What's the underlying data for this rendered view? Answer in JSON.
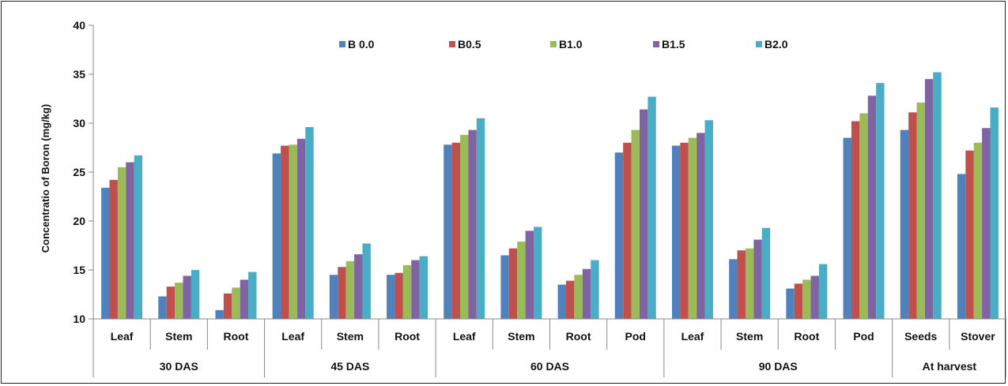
{
  "chart_data": {
    "type": "bar",
    "ylabel": "Concentratio of Boron (mg/kg)",
    "ylim": [
      10,
      40
    ],
    "yticks": [
      10,
      15,
      20,
      25,
      30,
      35,
      40
    ],
    "grid": false,
    "legend_position": "top-center",
    "categories": [
      "Leaf",
      "Stem",
      "Root",
      "Leaf",
      "Stem",
      "Root",
      "Leaf",
      "Stem",
      "Root",
      "Pod",
      "Leaf",
      "Stem",
      "Root",
      "Pod",
      "Seeds",
      "Stover"
    ],
    "groups": [
      {
        "label": "30 DAS",
        "count": 3
      },
      {
        "label": "45 DAS",
        "count": 3
      },
      {
        "label": "60 DAS",
        "count": 4
      },
      {
        "label": "90 DAS",
        "count": 4
      },
      {
        "label": "At harvest",
        "count": 2
      }
    ],
    "series": [
      {
        "name": "B 0.0",
        "color": "#4F81BD",
        "values": [
          23.4,
          12.3,
          10.9,
          26.9,
          14.5,
          14.5,
          27.8,
          16.5,
          13.5,
          27.0,
          27.7,
          16.1,
          13.1,
          28.5,
          29.3,
          24.8
        ]
      },
      {
        "name": "B0.5",
        "color": "#C0504D",
        "values": [
          24.2,
          13.3,
          12.6,
          27.7,
          15.3,
          14.7,
          28.0,
          17.2,
          13.9,
          28.0,
          28.0,
          17.0,
          13.6,
          30.2,
          31.1,
          27.2
        ]
      },
      {
        "name": "B1.0",
        "color": "#9BBB59",
        "values": [
          25.5,
          13.7,
          13.2,
          27.8,
          15.9,
          15.5,
          28.8,
          17.9,
          14.5,
          29.3,
          28.5,
          17.2,
          14.0,
          31.0,
          32.1,
          28.0
        ]
      },
      {
        "name": "B1.5",
        "color": "#8064A2",
        "values": [
          26.0,
          14.4,
          14.0,
          28.4,
          16.6,
          16.0,
          29.3,
          19.0,
          15.1,
          31.4,
          29.0,
          18.1,
          14.4,
          32.8,
          34.5,
          29.5
        ]
      },
      {
        "name": "B2.0",
        "color": "#4BACC6",
        "values": [
          26.7,
          15.0,
          14.8,
          29.6,
          17.7,
          16.4,
          30.5,
          19.4,
          16.0,
          32.7,
          30.3,
          19.3,
          15.6,
          34.1,
          35.2,
          31.6
        ]
      }
    ]
  }
}
